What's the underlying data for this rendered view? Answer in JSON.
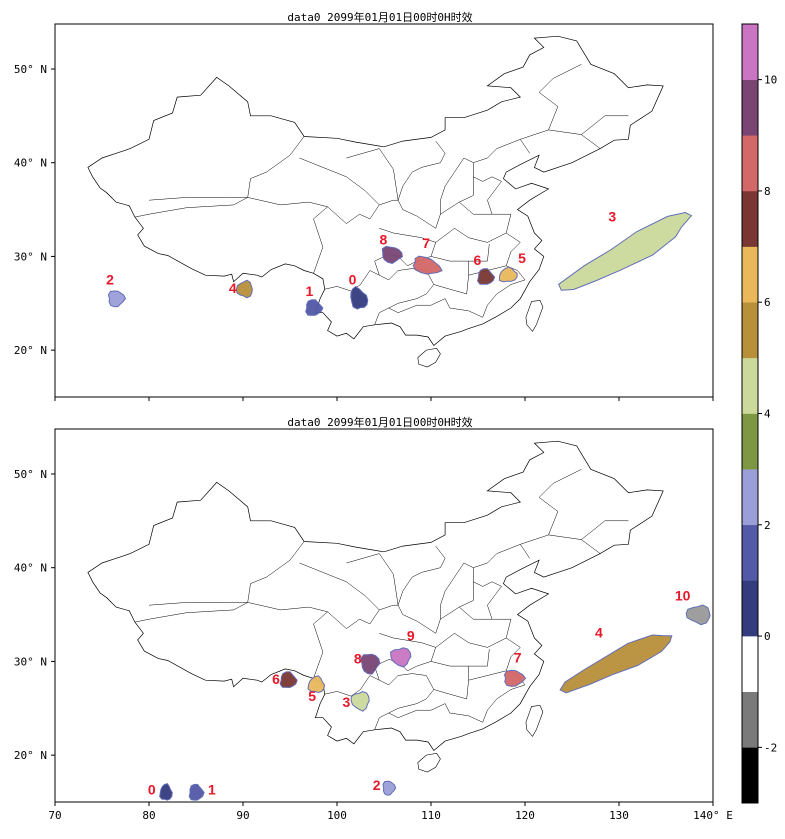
{
  "panels": [
    {
      "id": "top",
      "title": "data0 2099年01月01日00时0H时效",
      "lat_ticks": [
        "50° N",
        "40° N",
        "30° N",
        "20° N"
      ],
      "blobs": [
        {
          "label": "0",
          "lon": 102.3,
          "lat": 25.5,
          "level": 0
        },
        {
          "label": "1",
          "lon": 97.5,
          "lat": 24.5,
          "level": 1
        },
        {
          "label": "2",
          "lon": 76.5,
          "lat": 25.5,
          "level": 2
        },
        {
          "label": "3",
          "lon": 131.0,
          "lat": 30.5,
          "level": 4
        },
        {
          "label": "4",
          "lon": 90.2,
          "lat": 26.5,
          "level": 5
        },
        {
          "label": "5",
          "lon": 118.2,
          "lat": 28.0,
          "level": 6
        },
        {
          "label": "6",
          "lon": 115.8,
          "lat": 27.8,
          "level": 7
        },
        {
          "label": "7",
          "lon": 109.5,
          "lat": 29.0,
          "level": 8
        },
        {
          "label": "8",
          "lon": 105.8,
          "lat": 30.2,
          "level": 9
        }
      ]
    },
    {
      "id": "bottom",
      "title": "data0 2099年01月01日00时0H时效",
      "lat_ticks": [
        "50° N",
        "40° N",
        "30° N",
        "20° N"
      ],
      "lon_ticks": [
        "70",
        "80",
        "90",
        "100",
        "110",
        "120",
        "130",
        "140° E"
      ],
      "blobs": [
        {
          "label": "0",
          "lon": 81.8,
          "lat": 16.0,
          "level": 0
        },
        {
          "label": "1",
          "lon": 85.0,
          "lat": 16.0,
          "level": 1
        },
        {
          "label": "2",
          "lon": 105.5,
          "lat": 16.5,
          "level": 2
        },
        {
          "label": "3",
          "lon": 102.5,
          "lat": 25.8,
          "level": 4
        },
        {
          "label": "4",
          "lon": 130.0,
          "lat": 30.0,
          "level": 5
        },
        {
          "label": "5",
          "lon": 97.8,
          "lat": 27.5,
          "level": 6
        },
        {
          "label": "6",
          "lon": 94.8,
          "lat": 28.0,
          "level": 7
        },
        {
          "label": "7",
          "lon": 118.8,
          "lat": 28.2,
          "level": 8
        },
        {
          "label": "8",
          "lon": 103.5,
          "lat": 29.8,
          "level": 9
        },
        {
          "label": "9",
          "lon": 106.8,
          "lat": 30.5,
          "level": 10
        },
        {
          "label": "10",
          "lon": 138.5,
          "lat": 35.0,
          "level": 11
        }
      ]
    }
  ],
  "colorbar": {
    "tick_labels": [
      "10",
      "8",
      "6",
      "4",
      "2",
      "0",
      "-2"
    ],
    "colors": [
      "#000000",
      "#7a7a7a",
      "#ffffff",
      "#343c7e",
      "#5259a6",
      "#9b9fd9",
      "#7e9743",
      "#cbda9b",
      "#b9903a",
      "#e8b85a",
      "#7a3632",
      "#d36868",
      "#7a4573",
      "#c975c2"
    ]
  }
}
